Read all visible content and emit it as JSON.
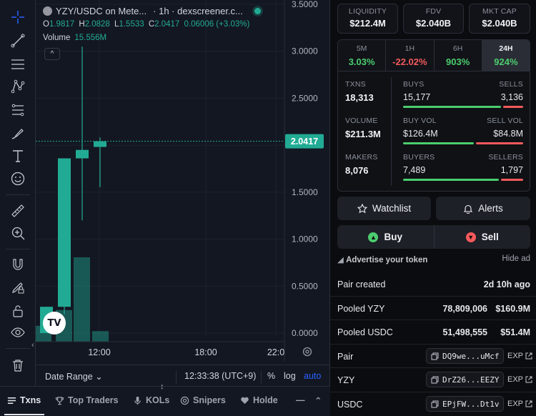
{
  "chart": {
    "title": "YZY/USDC on Mete...",
    "interval": "· 1h · dexscreener.c...",
    "ohlc": {
      "o_label": "O",
      "o": "1.9817",
      "h_label": "H",
      "h": "2.0828",
      "l_label": "L",
      "l": "1.5533",
      "c_label": "C",
      "c": "2.0417",
      "change": "0.06006 (+3.03%)"
    },
    "volume_label": "Volume",
    "volume_value": "15.556M",
    "collapse_glyph": "^",
    "price_labels": [
      "3.5000",
      "3.0000",
      "2.5000",
      "2.0000",
      "1.5000",
      "1.0000",
      "0.5000",
      "0.0000"
    ],
    "current_price": "2.0417",
    "time_labels": [
      "12:00",
      "18:00",
      "22:0"
    ],
    "footer": {
      "date_range": "Date Range",
      "clock": "12:33:38 (UTC+9)",
      "pct": "%",
      "log": "log",
      "auto": "auto"
    },
    "tv_logo": "TV"
  },
  "chart_data": {
    "type": "candlestick",
    "ylim": [
      0,
      3.5
    ],
    "candles": [
      {
        "o": 0.0,
        "h": 0.28,
        "l": 0.0,
        "c": 0.28
      },
      {
        "o": 0.28,
        "h": 1.86,
        "l": 0.2,
        "c": 1.86
      },
      {
        "o": 1.86,
        "h": 3.05,
        "l": 1.2,
        "c": 1.95
      },
      {
        "o": 1.9817,
        "h": 2.0828,
        "l": 1.5533,
        "c": 2.0417
      }
    ],
    "volumes": [
      1.5,
      3.0,
      8.0,
      1.0
    ]
  },
  "toolbar": {
    "tools": [
      "crosshair-icon",
      "trendline-icon",
      "horizontal-lines-icon",
      "pattern-icon",
      "fib-icon",
      "brush-icon",
      "text-icon",
      "emoji-icon",
      "ruler-icon",
      "zoom-in-icon",
      "magnet-icon",
      "lock-drawing-icon",
      "lock-icon",
      "eye-icon",
      "trash-icon"
    ]
  },
  "bottom_tabs": [
    {
      "label": "Txns",
      "icon": "list-icon"
    },
    {
      "label": "Top Traders",
      "icon": "trophy-icon"
    },
    {
      "label": "KOLs",
      "icon": "mic-icon"
    },
    {
      "label": "Snipers",
      "icon": "target-icon"
    },
    {
      "label": "Holde",
      "icon": "heart-icon"
    }
  ],
  "stats_top": [
    {
      "label": "LIQUIDITY",
      "value": "$212.4M"
    },
    {
      "label": "FDV",
      "value": "$2.040B"
    },
    {
      "label": "MKT CAP",
      "value": "$2.040B"
    }
  ],
  "periods": [
    {
      "label": "5M",
      "value": "3.03%",
      "dir": "pos"
    },
    {
      "label": "1H",
      "value": "-22.02%",
      "dir": "neg"
    },
    {
      "label": "6H",
      "value": "903%",
      "dir": "pos"
    },
    {
      "label": "24H",
      "value": "924%",
      "dir": "pos"
    }
  ],
  "txn_stats": {
    "txns_label": "TXNS",
    "txns": "18,313",
    "buys_label": "BUYS",
    "buys": "15,177",
    "sells_label": "SELLS",
    "sells": "3,136",
    "volume_label": "VOLUME",
    "volume": "$211.3M",
    "buy_vol_label": "BUY VOL",
    "buy_vol": "$126.4M",
    "sell_vol_label": "SELL VOL",
    "sell_vol": "$84.8M",
    "makers_label": "MAKERS",
    "makers": "8,076",
    "buyers_label": "BUYERS",
    "buyers": "7,489",
    "sellers_label": "SELLERS",
    "sellers": "1,797"
  },
  "ratios": {
    "buys": 0.83,
    "buy_vol": 0.6,
    "buyers": 0.81
  },
  "actions": {
    "watchlist": "Watchlist",
    "alerts": "Alerts",
    "buy": "Buy",
    "sell": "Sell"
  },
  "advertise": {
    "label": "Advertise your token",
    "hide": "Hide ad"
  },
  "info": {
    "pair_created_label": "Pair created",
    "pair_created": "2d 10h ago",
    "pooled_yzy_label": "Pooled YZY",
    "pooled_yzy": "78,809,006",
    "pooled_yzy_usd": "$160.9M",
    "pooled_usdc_label": "Pooled USDC",
    "pooled_usdc": "51,498,555",
    "pooled_usdc_usd": "$51.4M",
    "pair_label": "Pair",
    "pair_addr": "DQ9we...uMcf",
    "yzy_label": "YZY",
    "yzy_addr": "DrZ26...EEZY",
    "usdc_label": "USDC",
    "usdc_addr": "EPjFW...Dt1v",
    "exp": "EXP"
  },
  "colors": {
    "up": "#22ab94",
    "accent": "#2962ff",
    "buy": "#4ccd6f",
    "sell": "#f4595b"
  }
}
